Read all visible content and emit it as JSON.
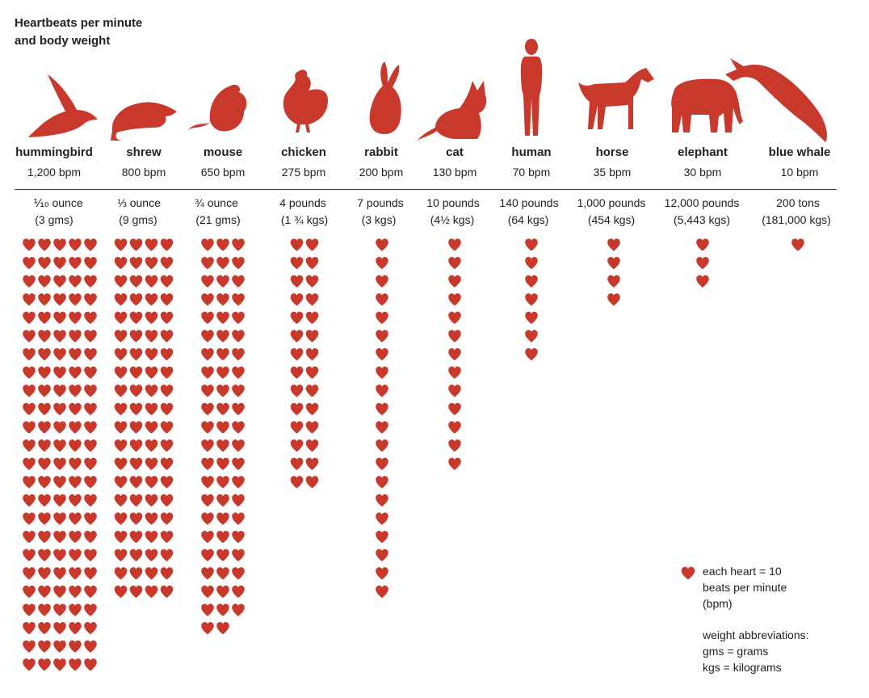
{
  "title_line1": "Heartbeats per minute",
  "title_line2": "and body weight",
  "colors": {
    "heart": "#c8392b",
    "text": "#222222"
  },
  "chart_data": {
    "type": "pictograph",
    "unit_per_icon": 10,
    "categories": [
      "hummingbird",
      "shrew",
      "mouse",
      "chicken",
      "rabbit",
      "cat",
      "human",
      "horse",
      "elephant",
      "blue whale"
    ],
    "bpm_labels": [
      "1,200 bpm",
      "800 bpm",
      "650 bpm",
      "275 bpm",
      "200 bpm",
      "130 bpm",
      "70 bpm",
      "35 bpm",
      "30 bpm",
      "10 bpm"
    ],
    "weight_labels": [
      [
        "⅒ ounce",
        "(3 gms)"
      ],
      [
        "⅓ ounce",
        "(9 gms)"
      ],
      [
        "¾ ounce",
        "(21 gms)"
      ],
      [
        "4 pounds",
        "(1 ¾ kgs)"
      ],
      [
        "7 pounds",
        "(3 kgs)"
      ],
      [
        "10 pounds",
        "(4½ kgs)"
      ],
      [
        "140 pounds",
        "(64 kgs)"
      ],
      [
        "1,000 pounds",
        "(454 kgs)"
      ],
      [
        "12,000 pounds",
        "(5,443 kgs)"
      ],
      [
        "200 tons",
        "(181,000 kgs)"
      ]
    ],
    "series": [
      {
        "values": [
          1200,
          800,
          650,
          275,
          200,
          130,
          70,
          35,
          30,
          10
        ]
      }
    ],
    "icons": [
      "hummingbird-icon",
      "shrew-icon",
      "mouse-icon",
      "chicken-icon",
      "rabbit-icon",
      "cat-icon",
      "human-icon",
      "horse-icon",
      "elephant-icon",
      "blue-whale-icon"
    ]
  },
  "legend": {
    "heart_line1": "each heart = 10",
    "heart_line2": "beats per minute",
    "heart_line3": "(bpm)",
    "abbr_title": "weight abbreviations:",
    "abbr_gms": "gms = grams",
    "abbr_kgs": "kgs = kilograms"
  }
}
